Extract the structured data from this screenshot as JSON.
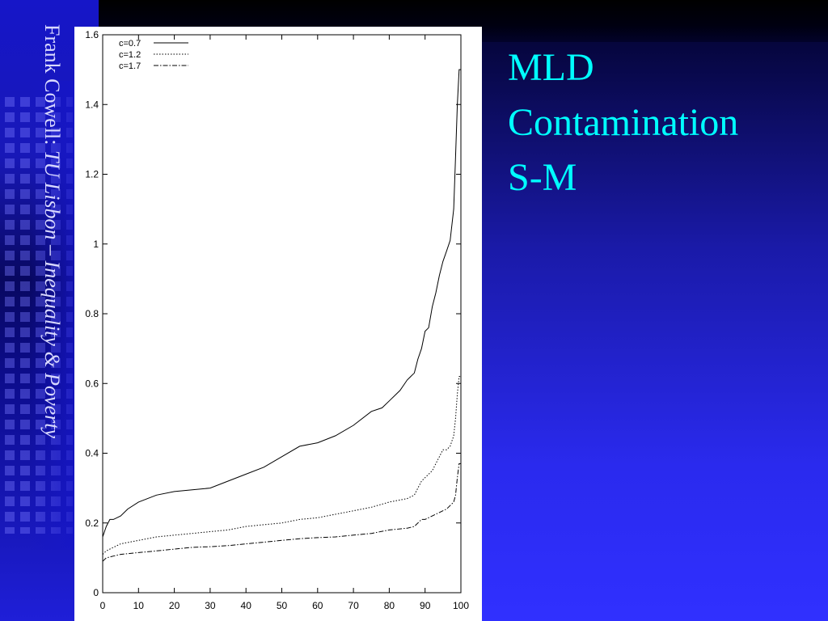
{
  "sidebar": {
    "author": "Frank Cowell: ",
    "course": "TU Lisbon – Inequality & Poverty"
  },
  "slide": {
    "title_lines": [
      "MLD",
      "Contamination",
      "S-M"
    ]
  },
  "chart_data": {
    "type": "line",
    "title": "",
    "xlabel": "",
    "ylabel": "",
    "xlim": [
      0,
      100
    ],
    "ylim": [
      0,
      1.6
    ],
    "xticks": [
      "0",
      "10",
      "20",
      "30",
      "40",
      "50",
      "60",
      "70",
      "80",
      "90",
      "100"
    ],
    "yticks": [
      "0",
      "0.2",
      "0.4",
      "0.6",
      "0.8",
      "1",
      "1.2",
      "1.4",
      "1.6"
    ],
    "legend_position": "top-left",
    "grid": false,
    "series": [
      {
        "name": "c=0.7",
        "style": "solid",
        "x": [
          0,
          1,
          2,
          3,
          5,
          7,
          10,
          15,
          20,
          25,
          30,
          35,
          40,
          45,
          50,
          55,
          60,
          65,
          70,
          75,
          78,
          80,
          83,
          85,
          87,
          88,
          89,
          90,
          91,
          92,
          93,
          94,
          95,
          96,
          97,
          98,
          98.5,
          99,
          99.5,
          100
        ],
        "y": [
          0.16,
          0.19,
          0.21,
          0.21,
          0.22,
          0.24,
          0.26,
          0.28,
          0.29,
          0.295,
          0.3,
          0.32,
          0.34,
          0.36,
          0.39,
          0.42,
          0.43,
          0.45,
          0.48,
          0.52,
          0.53,
          0.55,
          0.58,
          0.61,
          0.63,
          0.67,
          0.7,
          0.75,
          0.76,
          0.82,
          0.86,
          0.91,
          0.95,
          0.98,
          1.01,
          1.1,
          1.25,
          1.4,
          1.5,
          1.5
        ]
      },
      {
        "name": "c=1.2",
        "style": "dotted",
        "x": [
          0,
          1,
          3,
          5,
          10,
          15,
          20,
          25,
          30,
          35,
          40,
          45,
          50,
          55,
          60,
          65,
          70,
          75,
          80,
          85,
          87,
          88,
          89,
          90,
          92,
          93,
          94,
          95,
          96,
          97,
          98,
          98.5,
          99,
          99.5,
          100
        ],
        "y": [
          0.11,
          0.12,
          0.13,
          0.14,
          0.15,
          0.16,
          0.165,
          0.17,
          0.175,
          0.18,
          0.19,
          0.195,
          0.2,
          0.21,
          0.215,
          0.225,
          0.235,
          0.245,
          0.26,
          0.27,
          0.28,
          0.3,
          0.32,
          0.33,
          0.35,
          0.37,
          0.39,
          0.41,
          0.41,
          0.42,
          0.45,
          0.5,
          0.57,
          0.62,
          0.62
        ]
      },
      {
        "name": "c=1.7",
        "style": "dashdot",
        "x": [
          0,
          1,
          3,
          5,
          10,
          15,
          20,
          25,
          30,
          35,
          40,
          45,
          50,
          55,
          60,
          65,
          70,
          75,
          80,
          85,
          87,
          88,
          89,
          90,
          92,
          94,
          96,
          97,
          98,
          98.5,
          99,
          99.5,
          100
        ],
        "y": [
          0.09,
          0.1,
          0.105,
          0.11,
          0.115,
          0.12,
          0.125,
          0.13,
          0.132,
          0.135,
          0.14,
          0.145,
          0.15,
          0.155,
          0.158,
          0.16,
          0.165,
          0.17,
          0.18,
          0.185,
          0.19,
          0.2,
          0.21,
          0.21,
          0.22,
          0.23,
          0.24,
          0.25,
          0.26,
          0.28,
          0.33,
          0.37,
          0.37
        ]
      }
    ]
  }
}
